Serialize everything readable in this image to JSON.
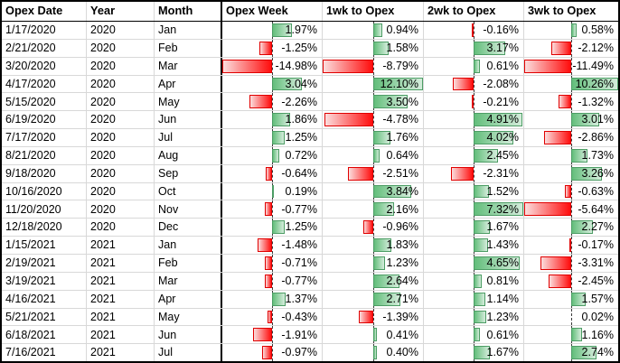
{
  "table": {
    "columns": [
      "Opex Date",
      "Year",
      "Month",
      "Opex Week",
      "1wk to Opex",
      "2wk to Opex",
      "3wk to Opex"
    ],
    "rows": [
      [
        "1/17/2020",
        "2020",
        "Jan",
        "1.97%",
        "0.94%",
        "-0.16%",
        "0.58%"
      ],
      [
        "2/21/2020",
        "2020",
        "Feb",
        "-1.25%",
        "1.58%",
        "3.17%",
        "-2.12%"
      ],
      [
        "3/20/2020",
        "2020",
        "Mar",
        "-14.98%",
        "-8.79%",
        "0.61%",
        "-11.49%"
      ],
      [
        "4/17/2020",
        "2020",
        "Apr",
        "3.04%",
        "12.10%",
        "-2.08%",
        "10.26%"
      ],
      [
        "5/15/2020",
        "2020",
        "May",
        "-2.26%",
        "3.50%",
        "-0.21%",
        "-1.32%"
      ],
      [
        "6/19/2020",
        "2020",
        "Jun",
        "1.86%",
        "-4.78%",
        "4.91%",
        "3.01%"
      ],
      [
        "7/17/2020",
        "2020",
        "Jul",
        "1.25%",
        "1.76%",
        "4.02%",
        "-2.86%"
      ],
      [
        "8/21/2020",
        "2020",
        "Aug",
        "0.72%",
        "0.64%",
        "2.45%",
        "1.73%"
      ],
      [
        "9/18/2020",
        "2020",
        "Sep",
        "-0.64%",
        "-2.51%",
        "-2.31%",
        "3.26%"
      ],
      [
        "10/16/2020",
        "2020",
        "Oct",
        "0.19%",
        "3.84%",
        "1.52%",
        "-0.63%"
      ],
      [
        "11/20/2020",
        "2020",
        "Nov",
        "-0.77%",
        "2.16%",
        "7.32%",
        "-5.64%"
      ],
      [
        "12/18/2020",
        "2020",
        "Dec",
        "1.25%",
        "-0.96%",
        "1.67%",
        "2.27%"
      ],
      [
        "1/15/2021",
        "2021",
        "Jan",
        "-1.48%",
        "1.83%",
        "1.43%",
        "-0.17%"
      ],
      [
        "2/19/2021",
        "2021",
        "Feb",
        "-0.71%",
        "1.23%",
        "4.65%",
        "-3.31%"
      ],
      [
        "3/19/2021",
        "2021",
        "Mar",
        "-0.77%",
        "2.64%",
        "0.81%",
        "-2.45%"
      ],
      [
        "4/16/2021",
        "2021",
        "Apr",
        "1.37%",
        "2.71%",
        "1.14%",
        "1.57%"
      ],
      [
        "5/21/2021",
        "2021",
        "May",
        "-0.43%",
        "-1.39%",
        "1.23%",
        "0.02%"
      ],
      [
        "6/18/2021",
        "2021",
        "Jun",
        "-1.91%",
        "0.41%",
        "0.61%",
        "1.16%"
      ],
      [
        "7/16/2021",
        "2021",
        "Jul",
        "-0.97%",
        "0.40%",
        "1.67%",
        "2.74%"
      ]
    ]
  },
  "bars": {
    "axis_position_pct": 50,
    "full_scale_abs_pct": 5,
    "positive_fill": "#63be7b",
    "positive_fade": "#d4ecdb",
    "positive_border": "#4d9d65",
    "negative_fill": "#ff0d0d",
    "negative_fade": "#fbdddd",
    "negative_border": "#e00000",
    "axis_color": "#3a3a3a"
  },
  "grid": {
    "gridline_color": "#d8d8d8",
    "heavy_border_color": "#000000"
  }
}
